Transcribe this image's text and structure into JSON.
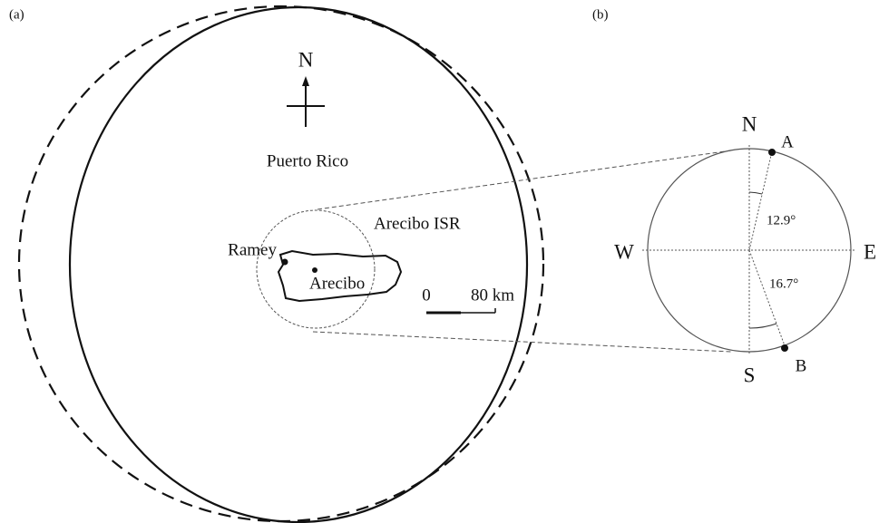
{
  "panel_a": {
    "label": "(a)",
    "north": "N",
    "title": "Puerto Rico",
    "radar_label": "Arecibo ISR",
    "places": [
      "Ramey",
      "Arecibo"
    ],
    "scale": [
      "0",
      "80 km"
    ]
  },
  "panel_b": {
    "label": "(b)",
    "compass": {
      "north": "N",
      "east": "E",
      "south": "S",
      "west": "W"
    },
    "points": [
      "A",
      "B"
    ],
    "angles": [
      "12.9°",
      "16.7°"
    ]
  }
}
